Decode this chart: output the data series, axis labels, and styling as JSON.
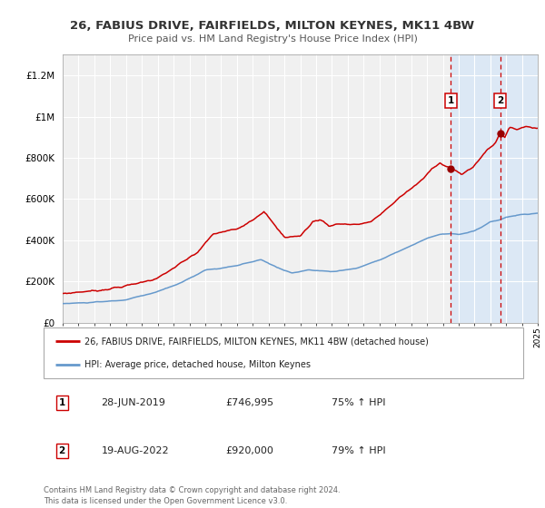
{
  "title": "26, FABIUS DRIVE, FAIRFIELDS, MILTON KEYNES, MK11 4BW",
  "subtitle": "Price paid vs. HM Land Registry's House Price Index (HPI)",
  "legend_label_red": "26, FABIUS DRIVE, FAIRFIELDS, MILTON KEYNES, MK11 4BW (detached house)",
  "legend_label_blue": "HPI: Average price, detached house, Milton Keynes",
  "annotation1_label": "1",
  "annotation1_date": "28-JUN-2019",
  "annotation1_price": "£746,995",
  "annotation1_hpi": "75% ↑ HPI",
  "annotation2_label": "2",
  "annotation2_date": "19-AUG-2022",
  "annotation2_price": "£920,000",
  "annotation2_hpi": "79% ↑ HPI",
  "footer": "Contains HM Land Registry data © Crown copyright and database right 2024.\nThis data is licensed under the Open Government Licence v3.0.",
  "ylim": [
    0,
    1300000
  ],
  "yticks": [
    0,
    200000,
    400000,
    600000,
    800000,
    1000000,
    1200000
  ],
  "ytick_labels": [
    "£0",
    "£200K",
    "£400K",
    "£600K",
    "£800K",
    "£1M",
    "£1.2M"
  ],
  "xmin": 1995,
  "xmax": 2025,
  "red_color": "#cc0000",
  "blue_color": "#6699cc",
  "background_color": "#ffffff",
  "plot_bg_color": "#f0f0f0",
  "grid_color": "#ffffff",
  "shade_start": 2019.5,
  "shade_end": 2025.5,
  "shade_color": "#dce8f5",
  "vline1_x": 2019.49,
  "vline2_x": 2022.62,
  "marker1_x": 2019.49,
  "marker1_y": 746995,
  "marker2_x": 2022.62,
  "marker2_y": 920000
}
